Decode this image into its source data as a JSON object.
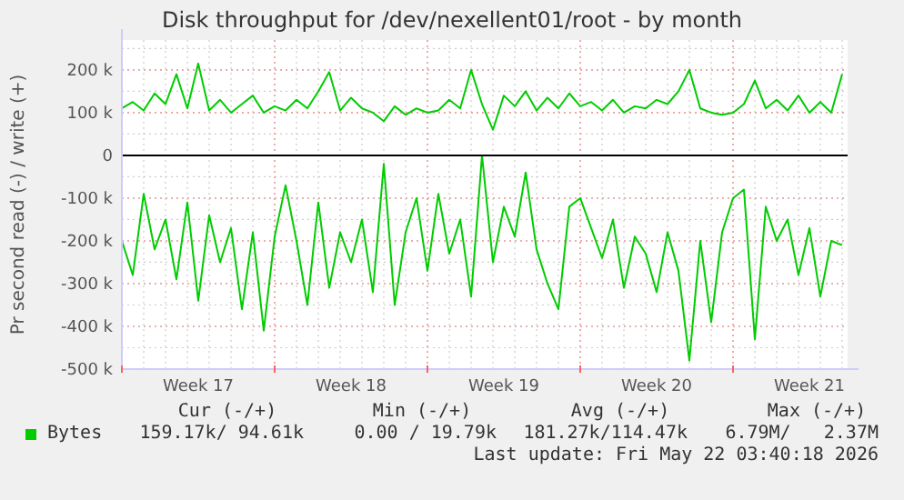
{
  "chart_data": {
    "type": "line",
    "title": "Disk throughput for /dev/nexellent01/root - by month",
    "ylabel": "Pr second read (-) / write (+)",
    "categories": [
      null,
      null,
      null,
      null,
      null,
      null,
      null,
      "Week 17",
      null,
      null,
      null,
      null,
      null,
      null,
      null,
      null,
      null,
      null,
      null,
      null,
      null,
      "Week 18",
      null,
      null,
      null,
      null,
      null,
      null,
      null,
      null,
      null,
      null,
      null,
      null,
      null,
      "Week 19",
      null,
      null,
      null,
      null,
      null,
      null,
      null,
      null,
      null,
      null,
      null,
      null,
      null,
      "Week 20",
      null,
      null,
      null,
      null,
      null,
      null,
      null,
      null,
      null,
      null,
      null,
      null,
      null,
      "Week 21",
      null,
      null,
      null
    ],
    "series": [
      {
        "name": "Bytes",
        "color": "#00cc00",
        "values": [
          110,
          125,
          105,
          145,
          120,
          190,
          110,
          215,
          105,
          130,
          100,
          120,
          140,
          100,
          115,
          105,
          130,
          110,
          150,
          195,
          105,
          135,
          110,
          100,
          80,
          115,
          95,
          110,
          100,
          105,
          130,
          110,
          200,
          120,
          60,
          140,
          115,
          150,
          105,
          135,
          110,
          145,
          115,
          125,
          105,
          130,
          100,
          115,
          110,
          130,
          120,
          150,
          200,
          110,
          100,
          95,
          100,
          120,
          175,
          110,
          130,
          105,
          140,
          100,
          125,
          100,
          190
        ]
      },
      {
        "color": "#00cc00",
        "values": [
          -200,
          -280,
          -90,
          -220,
          -150,
          -290,
          -110,
          -340,
          -140,
          -250,
          -170,
          -360,
          -180,
          -410,
          -190,
          -70,
          -200,
          -350,
          -110,
          -310,
          -180,
          -250,
          -150,
          -320,
          -20,
          -350,
          -180,
          -100,
          -270,
          -90,
          -230,
          -150,
          -330,
          0,
          -250,
          -120,
          -190,
          -40,
          -220,
          -300,
          -360,
          -120,
          -100,
          -170,
          -240,
          -150,
          -310,
          -190,
          -230,
          -320,
          -180,
          -270,
          -480,
          -200,
          -390,
          -180,
          -100,
          -80,
          -430,
          -120,
          -200,
          -150,
          -280,
          -170,
          -330,
          -200,
          -210
        ]
      }
    ],
    "ylim": [
      -500,
      270
    ],
    "yticks": [
      {
        "value": -500,
        "label": "-500 k"
      },
      {
        "value": -400,
        "label": "-400 k"
      },
      {
        "value": -300,
        "label": "-300 k"
      },
      {
        "value": -200,
        "label": "-200 k"
      },
      {
        "value": -100,
        "label": "-100 k"
      },
      0,
      {
        "value": 100,
        "label": "100 k"
      },
      {
        "value": 200,
        "label": "200 k"
      }
    ],
    "grid": true,
    "legend": "bottom",
    "annotations": [
      "Cur (-/+)",
      "Min (-/+)",
      "Avg (-/+)",
      "Max (-/+)",
      "159.17k/ 94.61k",
      "0.00 / 19.79k",
      "181.27k/114.47k",
      "6.79M/   2.37M",
      "Last update: Fri May 22 03:40:18 2026"
    ]
  }
}
